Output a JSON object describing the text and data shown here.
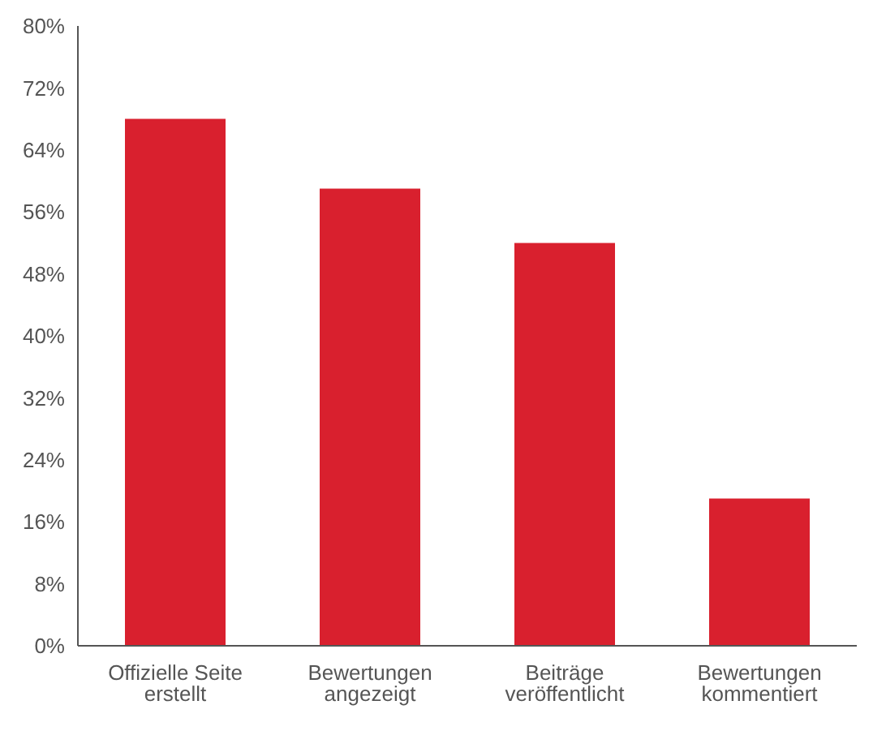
{
  "chart_data": {
    "type": "bar",
    "categories": [
      "Offizielle Seite erstellt",
      "Bewertungen angezeigt",
      "Beiträge veröffentlicht",
      "Bewertungen kommentiert"
    ],
    "values": [
      68,
      59,
      52,
      19
    ],
    "color": "#d9202e",
    "ylim": [
      0,
      80
    ],
    "yticks": [
      {
        "value": 0,
        "label": "0%"
      },
      {
        "value": 8,
        "label": "8%"
      },
      {
        "value": 16,
        "label": "16%"
      },
      {
        "value": 24,
        "label": "24%"
      },
      {
        "value": 32,
        "label": "32%"
      },
      {
        "value": 40,
        "label": "40%"
      },
      {
        "value": 48,
        "label": "48%"
      },
      {
        "value": 56,
        "label": "56%"
      },
      {
        "value": 64,
        "label": "64%"
      },
      {
        "value": 72,
        "label": "72%"
      },
      {
        "value": 80,
        "label": "80%"
      }
    ],
    "grid": false,
    "legend": false
  }
}
